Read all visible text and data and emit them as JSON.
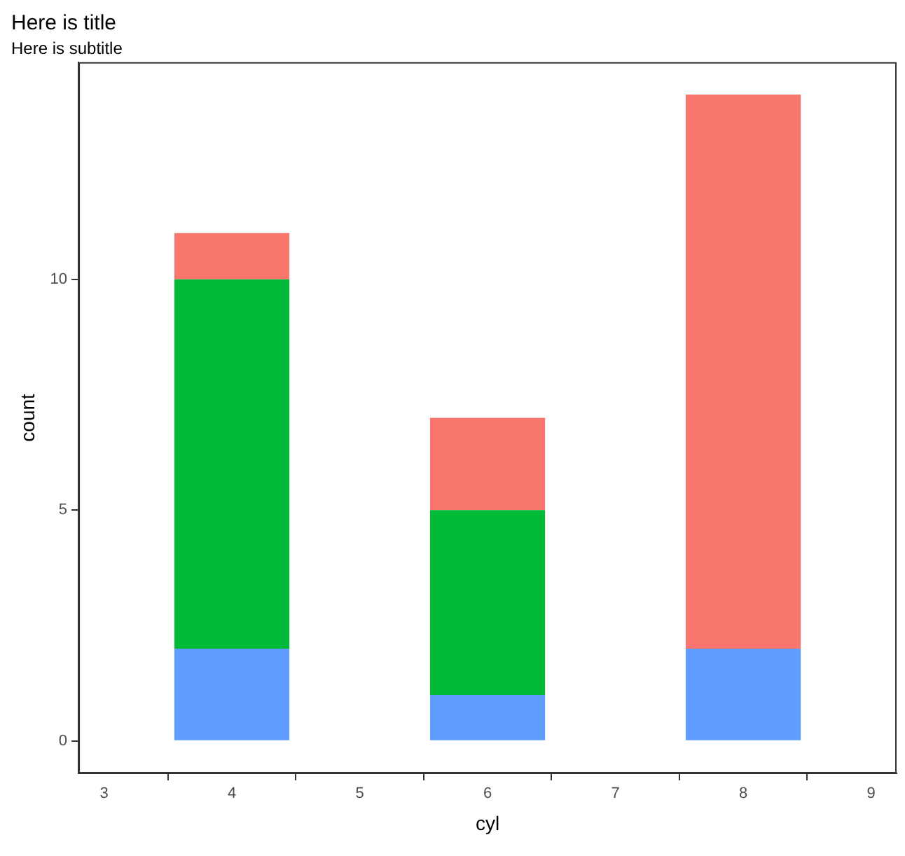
{
  "chart_data": {
    "type": "bar",
    "title": "Here is title",
    "subtitle": "Here is subtitle",
    "xlabel": "cyl",
    "ylabel": "count",
    "x": [
      4,
      6,
      8
    ],
    "stacked": true,
    "series": [
      {
        "color": "#619cff",
        "values": [
          2,
          1,
          2
        ]
      },
      {
        "color": "#00ba38",
        "values": [
          8,
          4,
          0
        ]
      },
      {
        "color": "#f8766d",
        "values": [
          1,
          2,
          12
        ]
      }
    ],
    "xlim": [
      2.8,
      9.2
    ],
    "xticks": [
      3,
      4,
      5,
      6,
      7,
      8,
      9
    ],
    "ylim": [
      -0.7,
      14.7
    ],
    "yticks": [
      0,
      5,
      10
    ],
    "grid": false,
    "legend": false
  }
}
